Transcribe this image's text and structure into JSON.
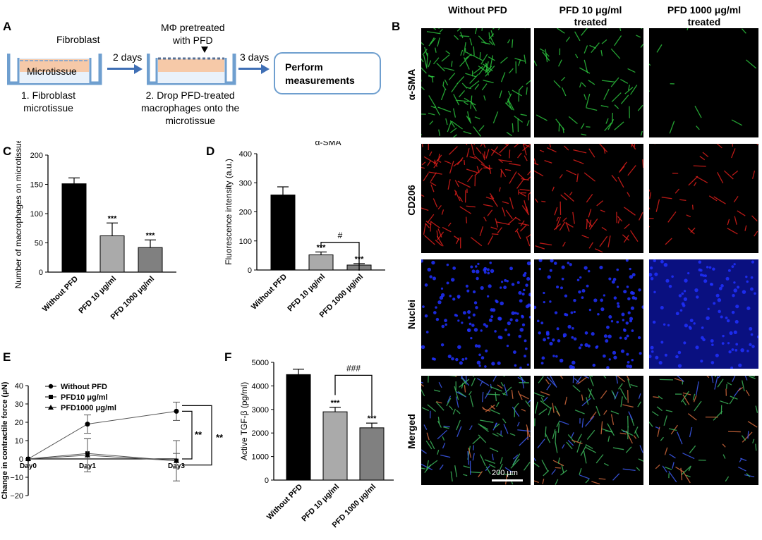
{
  "panel_letters": {
    "a": "A",
    "b": "B",
    "c": "C",
    "d": "D",
    "e": "E",
    "f": "F"
  },
  "schematic": {
    "fibroblast": "Fibroblast",
    "microtissue": "Microtissue",
    "two_days": "2 days",
    "three_days": "3 days",
    "pretreated_line1": "MΦ pretreated",
    "pretreated_line2": "with PFD",
    "step1_line1": "1. Fibroblast",
    "step1_line2": "microtissue",
    "step2_line1": "2. Drop PFD-treated",
    "step2_line2": "macrophages onto the",
    "step2_line3": "microtissue",
    "perform_line1": "Perform",
    "perform_line2": "measurements"
  },
  "imaging": {
    "columns": [
      "Without PFD",
      "PFD 10 μg/ml",
      "PFD 1000 μg/ml"
    ],
    "column_sub": [
      "",
      "treated",
      "treated"
    ],
    "rows": [
      "α-SMA",
      "CD206",
      "Nuclei",
      "Merged"
    ],
    "scale_bar": "200 μm",
    "colors": {
      "alpha_sma": "#2ecc40",
      "cd206": "#e8201c",
      "nuclei": "#2030ff",
      "merged": "#b87a50"
    }
  },
  "chart_data": [
    {
      "id": "C",
      "type": "bar",
      "title": "",
      "ylabel": "Number of macrophages on microtissue",
      "categories": [
        "Without PFD",
        "PFD 10 μg/ml",
        "PFD 1000 μg/ml"
      ],
      "values": [
        151,
        62,
        42
      ],
      "errors": [
        10,
        22,
        13
      ],
      "annotations": [
        "",
        "***",
        "***"
      ],
      "ylim": [
        0,
        200
      ],
      "yticks": [
        "0",
        "50",
        "100",
        "150",
        "200"
      ],
      "colors": [
        "#000000",
        "#aaaaaa",
        "#808080"
      ]
    },
    {
      "id": "D",
      "type": "bar",
      "title": "α-SMA",
      "ylabel": "Fluorescence intensity (a.u.)",
      "categories": [
        "Without PFD",
        "PFD 10 μg/ml",
        "PFD 1000 μg/ml"
      ],
      "values": [
        258,
        52,
        17
      ],
      "errors": [
        28,
        10,
        5
      ],
      "annotations": [
        "",
        "***",
        "***"
      ],
      "bracket": "#",
      "ylim": [
        0,
        400
      ],
      "yticks": [
        "0",
        "100",
        "200",
        "300",
        "400"
      ],
      "colors": [
        "#000000",
        "#aaaaaa",
        "#808080"
      ]
    },
    {
      "id": "E",
      "type": "line",
      "title": "",
      "ylabel": "Change in contractile force (μN)",
      "x": [
        "Day0",
        "Day1",
        "Day3"
      ],
      "series": [
        {
          "name": "Without PFD",
          "marker": "circle",
          "values": [
            0,
            19,
            26
          ],
          "errors": [
            0,
            5,
            5
          ]
        },
        {
          "name": "PFD10 μg/ml",
          "marker": "square",
          "values": [
            0,
            3,
            -1
          ],
          "errors": [
            0,
            8,
            11
          ]
        },
        {
          "name": "PFD1000 μg/ml",
          "marker": "triangle",
          "values": [
            0,
            2,
            -1
          ],
          "errors": [
            0,
            9,
            4
          ]
        }
      ],
      "ylim": [
        -20,
        40
      ],
      "yticks": [
        "−20",
        "−10",
        "0",
        "10",
        "20",
        "30",
        "40"
      ],
      "significance": [
        "**",
        "**"
      ]
    },
    {
      "id": "F",
      "type": "bar",
      "title": "",
      "ylabel": "Active TGF-β (pg/ml)",
      "categories": [
        "Without PFD",
        "PFD 10 μg/ml",
        "PFD 1000 μg/ml"
      ],
      "values": [
        4480,
        2900,
        2220
      ],
      "errors": [
        230,
        190,
        200
      ],
      "annotations": [
        "",
        "***",
        "***"
      ],
      "bracket": "###",
      "ylim": [
        0,
        5000
      ],
      "yticks": [
        "0",
        "1000",
        "2000",
        "3000",
        "4000",
        "5000"
      ],
      "colors": [
        "#000000",
        "#aaaaaa",
        "#808080"
      ]
    }
  ]
}
